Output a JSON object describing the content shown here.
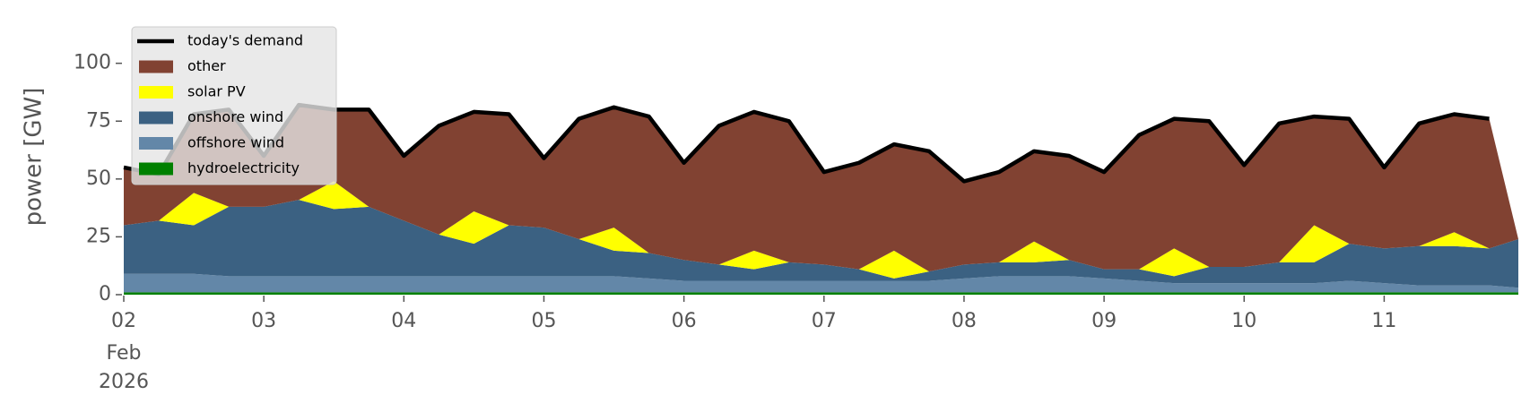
{
  "chart_data": {
    "type": "stacked_area",
    "ylabel": "power [GW]",
    "x": [
      2,
      2.25,
      2.5,
      2.75,
      3,
      3.25,
      3.5,
      3.75,
      4,
      4.25,
      4.5,
      4.75,
      5,
      5.25,
      5.5,
      5.75,
      6,
      6.25,
      6.5,
      6.75,
      7,
      7.25,
      7.5,
      7.75,
      8,
      8.25,
      8.5,
      8.75,
      9,
      9.25,
      9.5,
      9.75,
      10,
      10.25,
      10.5,
      10.75,
      11,
      11.25,
      11.5,
      11.75,
      11.958
    ],
    "xlim": [
      2,
      11.958
    ],
    "xticks": [
      {
        "value": 2,
        "label": "02"
      },
      {
        "value": 3,
        "label": "03"
      },
      {
        "value": 4,
        "label": "04"
      },
      {
        "value": 5,
        "label": "05"
      },
      {
        "value": 6,
        "label": "06"
      },
      {
        "value": 7,
        "label": "07"
      },
      {
        "value": 8,
        "label": "08"
      },
      {
        "value": 9,
        "label": "09"
      },
      {
        "value": 10,
        "label": "10"
      },
      {
        "value": 11,
        "label": "11"
      }
    ],
    "xtick_sublabels": [
      "Feb",
      "2026"
    ],
    "ylim": [
      0,
      120
    ],
    "yticks": [
      0,
      25,
      50,
      75,
      100
    ],
    "legend": "upper left",
    "series": [
      {
        "name": "today's demand",
        "kind": "line",
        "color": "#000000",
        "values": [
          55,
          52,
          78,
          80,
          60,
          82,
          80,
          80,
          60,
          73,
          79,
          78,
          59,
          76,
          81,
          77,
          57,
          73,
          79,
          75,
          53,
          57,
          65,
          62,
          49,
          53,
          62,
          60,
          53,
          69,
          76,
          75,
          56,
          74,
          77,
          76,
          55,
          74,
          78,
          76,
          null
        ]
      },
      {
        "name": "other",
        "kind": "area",
        "color": "#814232",
        "values": [
          25,
          20,
          34,
          42,
          22,
          41,
          31,
          42,
          28,
          47,
          43,
          48,
          30,
          52,
          52,
          59,
          42,
          60,
          60,
          61,
          40,
          46,
          46,
          52,
          36,
          39,
          39,
          45,
          42,
          58,
          56,
          63,
          44,
          60,
          47,
          54,
          35,
          53,
          51,
          56,
          0
        ]
      },
      {
        "name": "solar PV",
        "kind": "area",
        "color": "#ffff00",
        "values": [
          0,
          0,
          14,
          0,
          0,
          0,
          12,
          0,
          0,
          0,
          14,
          0,
          0,
          0,
          10,
          0,
          0,
          0,
          8,
          0,
          0,
          0,
          12,
          0,
          0,
          0,
          9,
          0,
          0,
          0,
          12,
          0,
          0,
          0,
          16,
          0,
          0,
          0,
          6,
          0,
          0
        ]
      },
      {
        "name": "onshore wind",
        "kind": "area",
        "color": "#3b6182",
        "values": [
          21,
          23,
          21,
          30,
          30,
          33,
          29,
          30,
          24,
          18,
          14,
          22,
          21,
          16,
          11,
          11,
          9,
          7,
          5,
          8,
          7,
          5,
          1,
          4,
          6,
          6,
          6,
          7,
          4,
          5,
          3,
          7,
          7,
          9,
          9,
          16,
          15,
          17,
          17,
          16,
          21
        ]
      },
      {
        "name": "offshore wind",
        "kind": "area",
        "color": "#6387a8",
        "values": [
          8,
          8,
          8,
          7,
          7,
          7,
          7,
          7,
          7,
          7,
          7,
          7,
          7,
          7,
          7,
          6,
          5,
          5,
          5,
          5,
          5,
          5,
          5,
          5,
          6,
          7,
          7,
          7,
          6,
          5,
          4,
          4,
          4,
          4,
          4,
          5,
          4,
          3,
          3,
          3,
          2
        ]
      },
      {
        "name": "hydroelectricity",
        "kind": "area",
        "color": "#008000",
        "values": [
          1,
          1,
          1,
          1,
          1,
          1,
          1,
          1,
          1,
          1,
          1,
          1,
          1,
          1,
          1,
          1,
          1,
          1,
          1,
          1,
          1,
          1,
          1,
          1,
          1,
          1,
          1,
          1,
          1,
          1,
          1,
          1,
          1,
          1,
          1,
          1,
          1,
          1,
          1,
          1,
          1
        ]
      }
    ]
  }
}
